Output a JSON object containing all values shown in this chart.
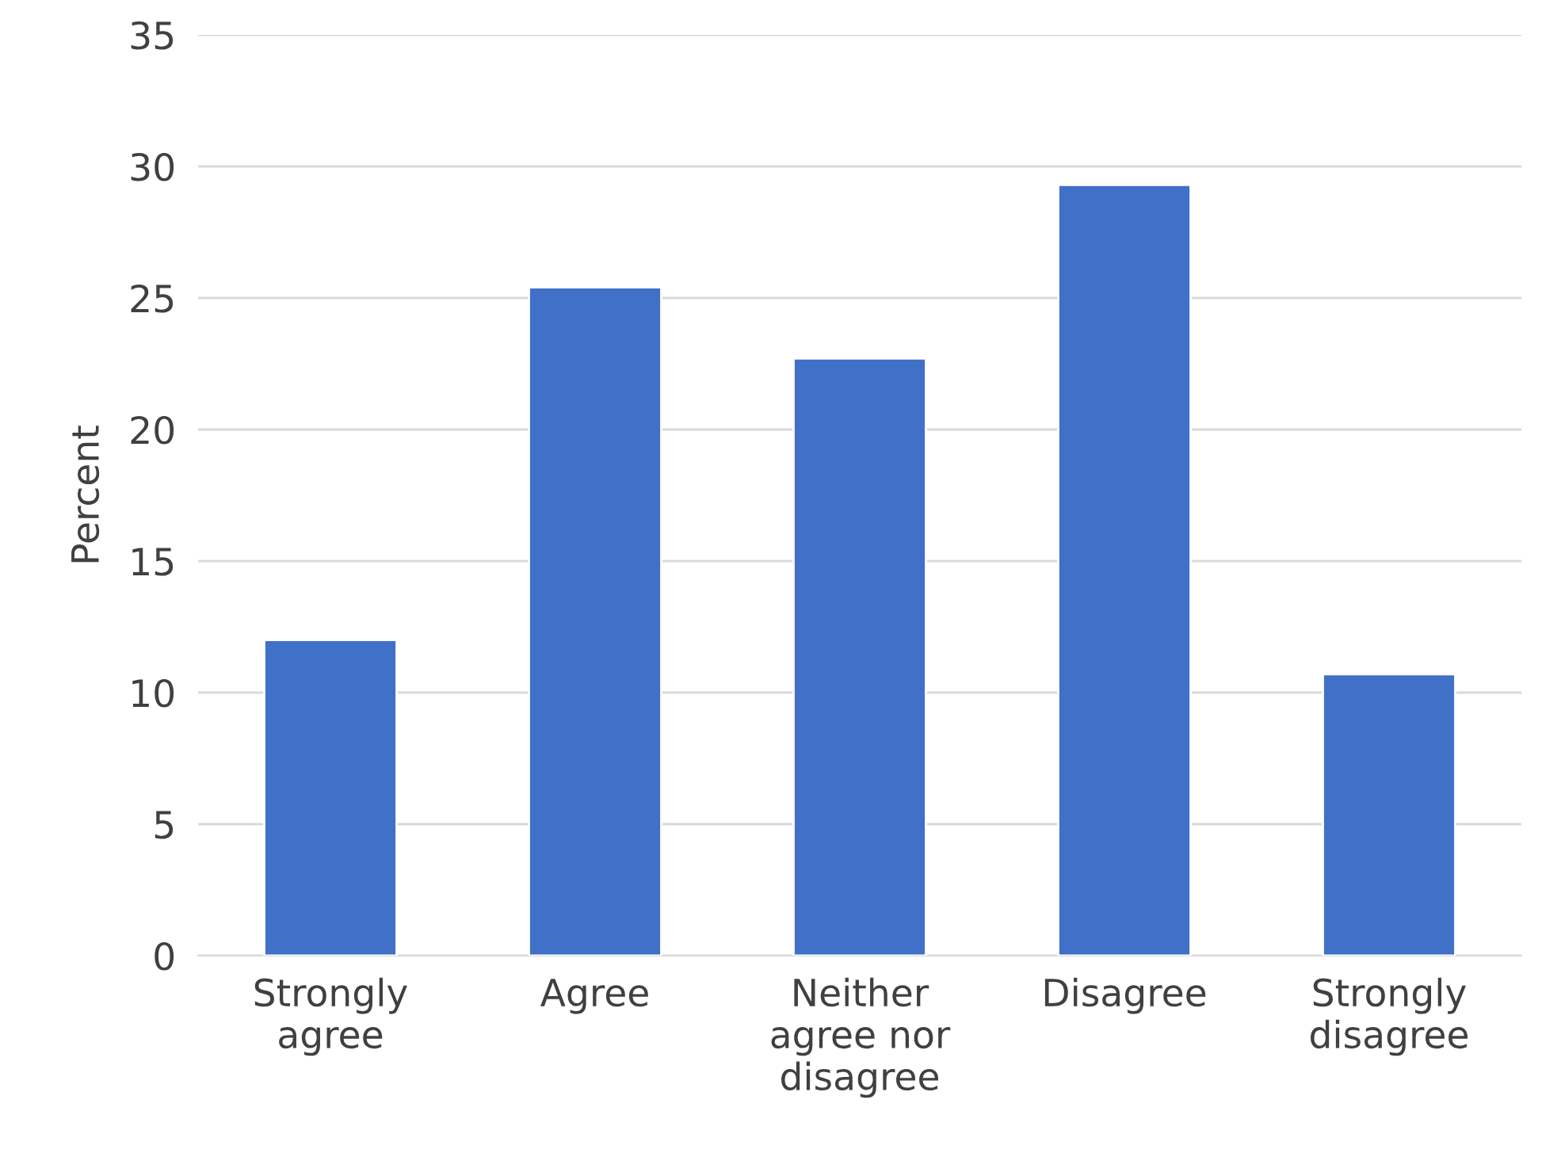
{
  "chart_data": {
    "type": "bar",
    "ylabel": "Percent",
    "categories": [
      "Strongly\nagree",
      "Agree",
      "Neither\nagree nor\ndisagree",
      "Disagree",
      "Strongly\ndisagree"
    ],
    "values": [
      12.0,
      25.4,
      22.7,
      29.3,
      10.7
    ],
    "color": "#4070c8",
    "ylim": [
      0,
      35
    ],
    "yticks": [
      0,
      5,
      10,
      15,
      20,
      25,
      30,
      35
    ],
    "grid": "y",
    "legend": false
  }
}
